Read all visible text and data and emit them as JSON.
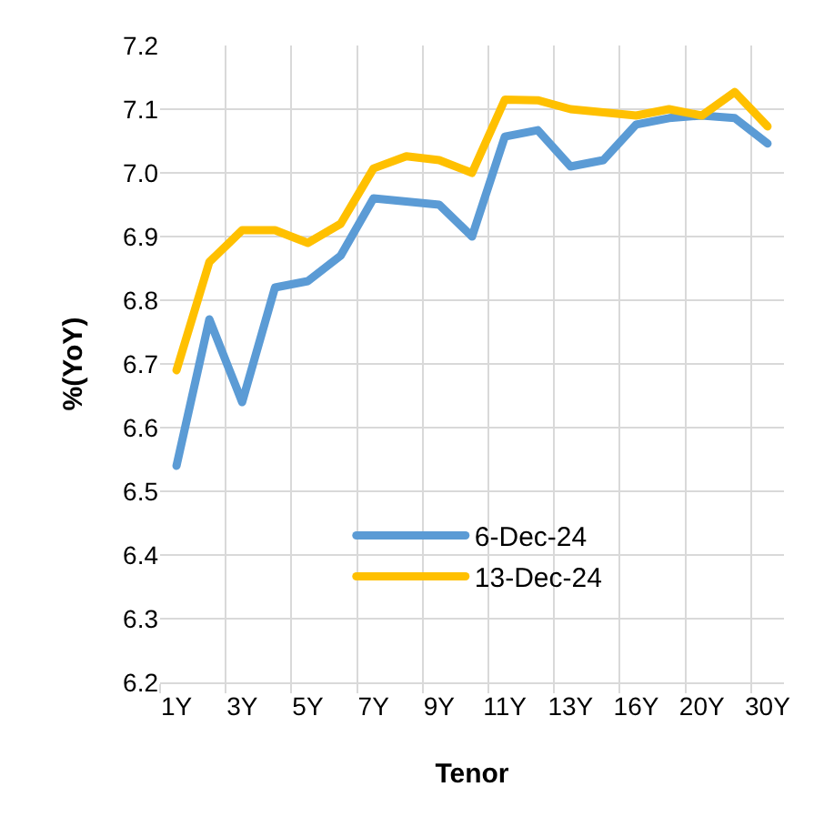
{
  "chart_data": {
    "type": "line",
    "xlabel": "Tenor",
    "ylabel": "%(YoY)",
    "categories": [
      "1Y",
      null,
      "3Y",
      null,
      "5Y",
      null,
      "7Y",
      null,
      "9Y",
      null,
      "11Y",
      null,
      "13Y",
      null,
      "16Y",
      null,
      "20Y",
      null,
      "30Y"
    ],
    "series": [
      {
        "name": "6-Dec-24",
        "color": "#5b9bd5",
        "values": [
          6.54,
          6.77,
          6.64,
          6.82,
          6.83,
          6.87,
          6.96,
          6.955,
          6.95,
          6.9,
          7.057,
          7.067,
          7.01,
          7.02,
          7.076,
          7.086,
          7.09,
          7.086,
          7.046
        ]
      },
      {
        "name": "13-Dec-24",
        "color": "#ffc000",
        "values": [
          6.69,
          6.86,
          6.91,
          6.91,
          6.89,
          6.92,
          7.007,
          7.026,
          7.02,
          7.0,
          7.115,
          7.114,
          7.1,
          7.095,
          7.09,
          7.1,
          7.09,
          7.127,
          7.073
        ]
      }
    ],
    "ylim": [
      6.2,
      7.2
    ],
    "yticks": [
      6.2,
      6.3,
      6.4,
      6.5,
      6.6,
      6.7,
      6.8,
      6.9,
      {
        "value": 7,
        "label": "7.0"
      },
      7.1,
      7.2
    ],
    "grid": true,
    "legend": "bottom",
    "marker": "none",
    "line_style": "solid"
  }
}
